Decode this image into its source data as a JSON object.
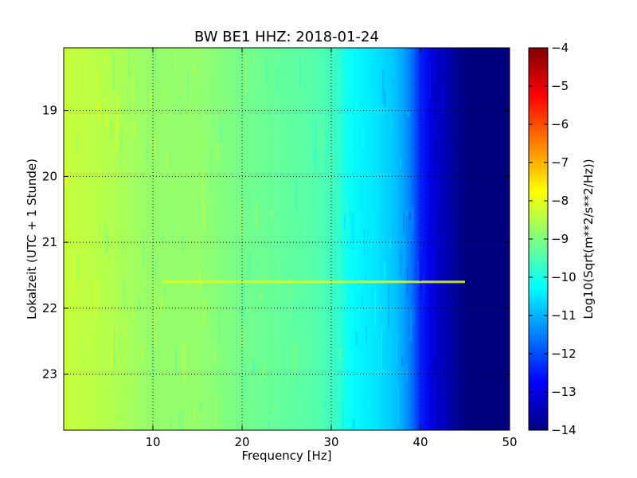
{
  "chart_data": {
    "type": "heatmap",
    "title": "BW BE1 HHZ: 2018-01-24",
    "xlabel": "Frequency [Hz]",
    "ylabel": "Lokalzeit (UTC + 1 Stunde)",
    "colorbar_label": "Log10(Sqrt(m**2/s**2/Hz))",
    "xlim": [
      0,
      50
    ],
    "ylim": [
      18.05,
      23.85
    ],
    "y_inverted": true,
    "x_ticks": [
      10,
      20,
      30,
      40,
      50
    ],
    "x_tick_labels": [
      "10",
      "20",
      "30",
      "40",
      "50"
    ],
    "y_ticks": [
      19,
      20,
      21,
      22,
      23
    ],
    "y_tick_labels": [
      "19",
      "20",
      "21",
      "22",
      "23"
    ],
    "clim": [
      -14,
      -4
    ],
    "colorbar_ticks": [
      -4,
      -5,
      -6,
      -7,
      -8,
      -9,
      -10,
      -11,
      -12,
      -13,
      -14
    ],
    "colorbar_tick_labels": [
      "−4",
      "−5",
      "−6",
      "−7",
      "−8",
      "−9",
      "−10",
      "−11",
      "−12",
      "−13",
      "−14"
    ],
    "colormap": "jet",
    "grid": true,
    "spectrum_profile": {
      "frequency_hz": [
        0,
        5,
        10,
        15,
        20,
        25,
        28,
        30,
        31,
        32,
        35,
        37,
        38,
        39,
        40,
        41,
        42,
        43,
        44,
        45,
        50
      ],
      "log_psd": [
        -8.3,
        -8.5,
        -8.8,
        -8.8,
        -9.1,
        -9.3,
        -9.4,
        -9.6,
        -9.8,
        -10.2,
        -10.5,
        -10.8,
        -11.1,
        -11.6,
        -12.4,
        -13.0,
        -13.3,
        -13.5,
        -13.8,
        -14.0,
        -14.0
      ]
    },
    "spectral_line": {
      "time_h": 21.6,
      "freq_start_hz": 11,
      "freq_end_hz": 45,
      "log_psd": -8.0
    }
  }
}
